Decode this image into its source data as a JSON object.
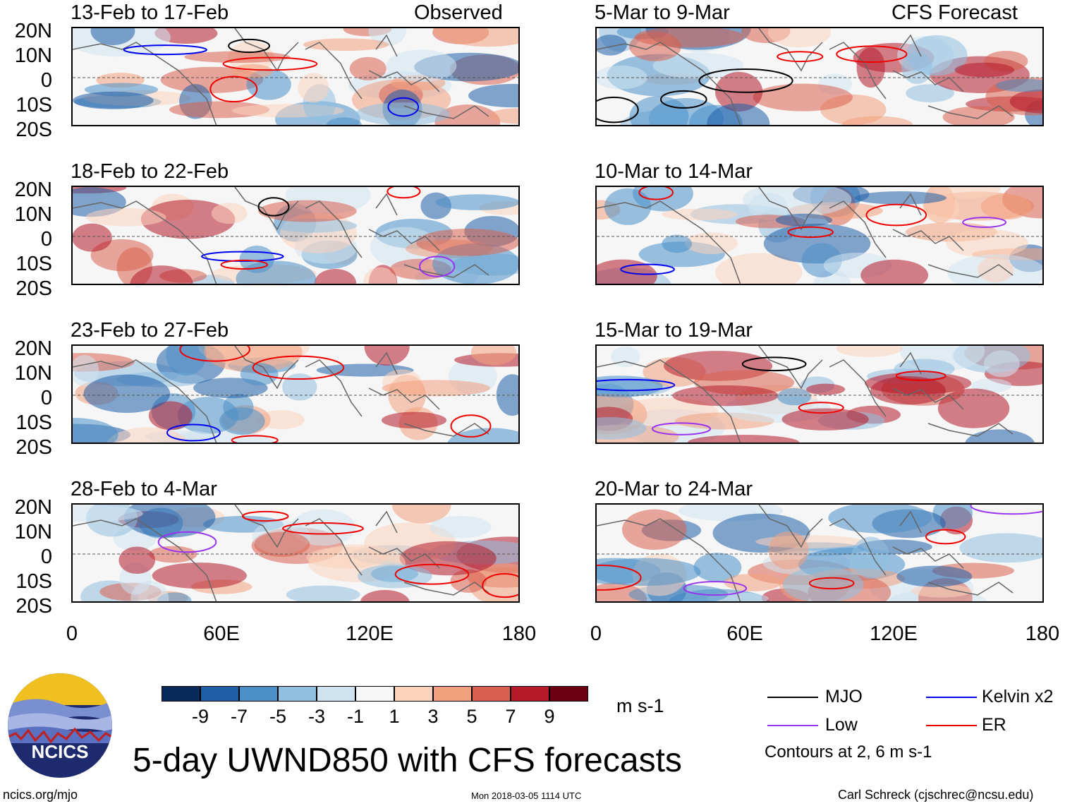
{
  "headers": {
    "left": "Observed",
    "right": "CFS Forecast"
  },
  "panels_left": [
    {
      "title": "13-Feb to 17-Feb"
    },
    {
      "title": "18-Feb to 22-Feb"
    },
    {
      "title": "23-Feb to 27-Feb"
    },
    {
      "title": "28-Feb to 4-Mar"
    }
  ],
  "panels_right": [
    {
      "title": "5-Mar to 9-Mar"
    },
    {
      "title": "10-Mar to 14-Mar"
    },
    {
      "title": "15-Mar to 19-Mar"
    },
    {
      "title": "20-Mar to 24-Mar"
    }
  ],
  "lat_labels": [
    "20N",
    "10N",
    "0",
    "10S",
    "20S"
  ],
  "lon_labels": [
    "0",
    "60E",
    "120E",
    "180"
  ],
  "colorbar": {
    "colors": [
      "#0a2a5c",
      "#1f5fa8",
      "#4a90c8",
      "#8fc0e0",
      "#cfe3f0",
      "#f7f7f7",
      "#fbd2bc",
      "#f2a07e",
      "#d8604e",
      "#b41a2a",
      "#6b0010"
    ],
    "labels": [
      "-9",
      "-7",
      "-5",
      "-3",
      "-1",
      "1",
      "3",
      "5",
      "7",
      "9"
    ],
    "units": "m s-1"
  },
  "legend": {
    "items": [
      {
        "label": "MJO",
        "color": "#000000"
      },
      {
        "label": "Kelvin x2",
        "color": "#0000ee"
      },
      {
        "label": "Low",
        "color": "#9933ee"
      },
      {
        "label": "ER",
        "color": "#ee0000"
      }
    ],
    "note": "Contours at 2, 6 m s-1"
  },
  "logo": {
    "text": "NCICS"
  },
  "main_title": "5-day UWND850 with CFS forecasts",
  "footer": {
    "url": "ncics.org/mjo",
    "timestamp": "Mon 2018-03-05 1114 UTC",
    "author": "Carl Schreck (cjschrec@ncsu.edu)"
  }
}
